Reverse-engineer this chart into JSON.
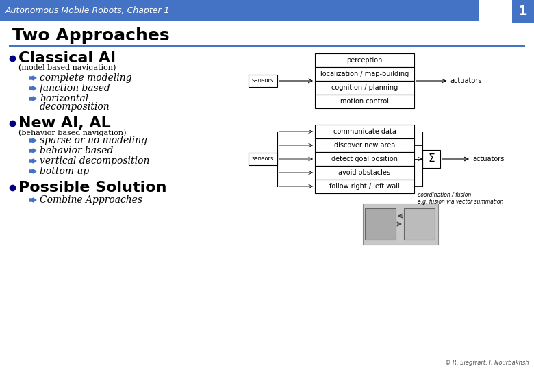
{
  "title": "Two Approaches",
  "header_text": "Autonomous Mobile Robots, Chapter 1",
  "slide_number": "1",
  "header_bg": "#4472C4",
  "bg_color": "#FFFFFF",
  "bullet_color": "#000080",
  "arrow_color": "#4472C4",
  "text_color": "#000000",
  "bullet1_main": "Classical AI",
  "bullet1_sub": "(model based navigation)",
  "bullet1_items": [
    "complete modeling",
    "function based",
    "horizontal",
    "decomposition"
  ],
  "bullet2_main": "New AI, AL",
  "bullet2_sub": "(behavior based navigation)",
  "bullet2_items": [
    "sparse or no modeling",
    "behavior based",
    "vertical decomposition",
    "bottom up"
  ],
  "bullet3_main": "Possible Solution",
  "bullet3_items": [
    "Combine Approaches"
  ],
  "diagram1_boxes": [
    "perception",
    "localization / map-building",
    "cognition / planning",
    "motion control"
  ],
  "diagram1_sensors": "sensors",
  "diagram1_actuators": "actuators",
  "diagram2_boxes": [
    "communicate data",
    "discover new area",
    "detect goal position",
    "avoid obstacles",
    "follow right / left wall"
  ],
  "diagram2_sensors": "sensors",
  "diagram2_actuators": "actuators",
  "diagram2_fusion": "coordination / fusion\ne.g. fusion via vector summation",
  "copyright": "© R. Siegwart, I. Nourbakhsh"
}
